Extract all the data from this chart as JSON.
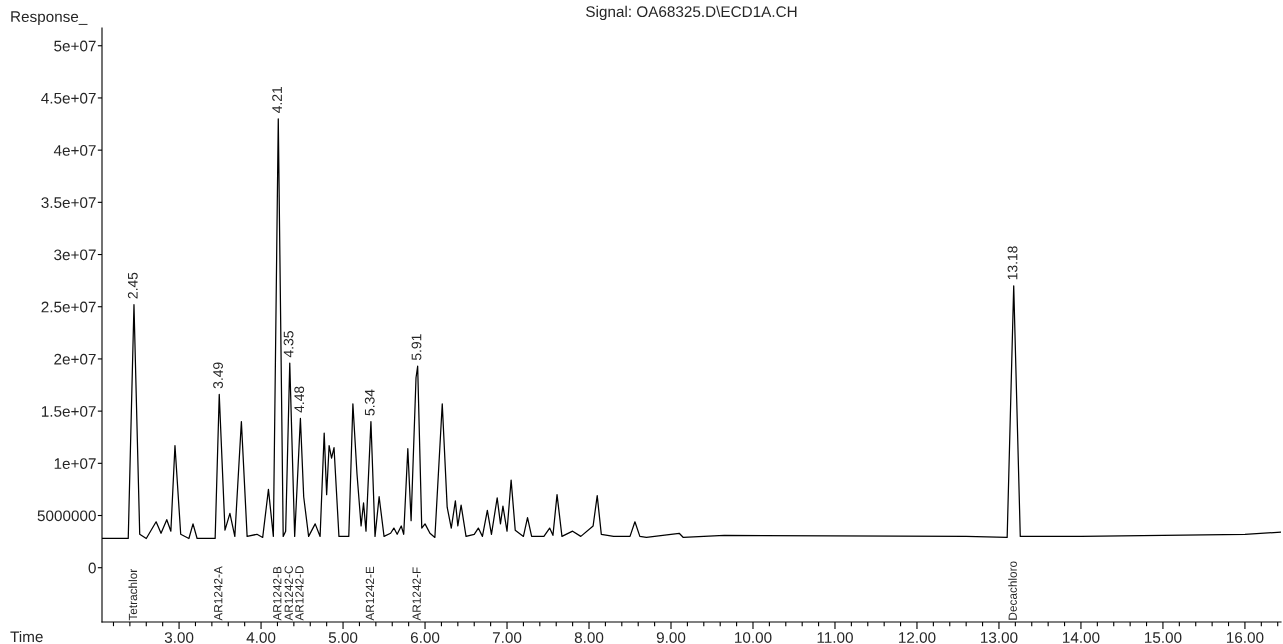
{
  "chart_data": {
    "type": "line",
    "title": "Signal: OA68325.D\\ECD1A.CH",
    "xlabel": "Time",
    "ylabel": "Response_",
    "series": [
      {
        "color": "#000000",
        "x": [
          2.06,
          2.38,
          2.45,
          2.52,
          2.6,
          2.72,
          2.78,
          2.85,
          2.9,
          2.95,
          3.02,
          3.12,
          3.17,
          3.22,
          3.44,
          3.49,
          3.56,
          3.62,
          3.68,
          3.76,
          3.83,
          3.95,
          4.02,
          4.09,
          4.15,
          4.21,
          4.27,
          4.3,
          4.35,
          4.41,
          4.48,
          4.52,
          4.58,
          4.66,
          4.72,
          4.77,
          4.8,
          4.83,
          4.86,
          4.89,
          4.95,
          5.07,
          5.12,
          5.17,
          5.22,
          5.25,
          5.28,
          5.34,
          5.39,
          5.44,
          5.5,
          5.58,
          5.62,
          5.66,
          5.71,
          5.74,
          5.79,
          5.83,
          5.89,
          5.91,
          5.96,
          6.0,
          6.06,
          6.12,
          6.21,
          6.27,
          6.32,
          6.37,
          6.4,
          6.44,
          6.5,
          6.6,
          6.65,
          6.7,
          6.76,
          6.81,
          6.88,
          6.92,
          6.95,
          7.0,
          7.05,
          7.1,
          7.2,
          7.25,
          7.3,
          7.45,
          7.52,
          7.56,
          7.61,
          7.67,
          7.8,
          7.9,
          8.05,
          8.1,
          8.15,
          8.3,
          8.5,
          8.56,
          8.62,
          8.7,
          9.1,
          9.15,
          9.65,
          12.6,
          13.1,
          13.18,
          13.26,
          14.0,
          15.0,
          16.0,
          16.44
        ],
        "values": [
          2800000,
          2800000,
          25200000,
          3200000,
          2800000,
          4400000,
          3300000,
          4600000,
          3500000,
          11700000,
          3200000,
          2800000,
          4200000,
          2800000,
          2800000,
          16600000,
          3600000,
          5200000,
          3000000,
          14000000,
          3000000,
          3200000,
          2900000,
          7500000,
          3000000,
          43000000,
          3000000,
          3500000,
          19600000,
          3000000,
          14300000,
          6800000,
          3000000,
          4200000,
          3000000,
          12900000,
          7000000,
          11700000,
          10500000,
          11500000,
          3000000,
          3000000,
          15700000,
          9000000,
          4000000,
          6200000,
          3500000,
          14000000,
          3000000,
          6800000,
          3000000,
          3300000,
          3800000,
          3200000,
          4000000,
          3200000,
          11400000,
          4500000,
          18200000,
          19300000,
          3800000,
          4200000,
          3300000,
          2900000,
          15700000,
          5800000,
          3800000,
          6400000,
          4000000,
          6000000,
          3000000,
          3200000,
          3800000,
          3000000,
          5500000,
          3200000,
          6700000,
          4200000,
          5900000,
          3500000,
          8400000,
          3600000,
          3000000,
          4800000,
          3000000,
          3000000,
          3800000,
          3100000,
          7000000,
          3000000,
          3500000,
          3000000,
          4000000,
          6900000,
          3200000,
          3000000,
          3000000,
          4400000,
          3000000,
          2900000,
          3300000,
          2900000,
          3100000,
          3000000,
          2900000,
          27000000,
          3000000,
          3000000,
          3100000,
          3200000,
          3400000
        ]
      }
    ],
    "xlim": [
      2.06,
      16.44
    ],
    "xticks": [
      {
        "value": 2.2,
        "label": null
      },
      {
        "value": 2.4,
        "label": null
      },
      {
        "value": 2.6,
        "label": null
      },
      {
        "value": 2.8,
        "label": null
      },
      {
        "value": 3,
        "label": "3.00"
      },
      {
        "value": 3.2,
        "label": null
      },
      {
        "value": 3.4,
        "label": null
      },
      {
        "value": 3.6,
        "label": null
      },
      {
        "value": 3.8,
        "label": null
      },
      {
        "value": 4,
        "label": "4.00"
      },
      {
        "value": 4.2,
        "label": null
      },
      {
        "value": 4.4,
        "label": null
      },
      {
        "value": 4.6,
        "label": null
      },
      {
        "value": 4.8,
        "label": null
      },
      {
        "value": 5,
        "label": "5.00"
      },
      {
        "value": 5.2,
        "label": null
      },
      {
        "value": 5.4,
        "label": null
      },
      {
        "value": 5.6,
        "label": null
      },
      {
        "value": 5.8,
        "label": null
      },
      {
        "value": 6,
        "label": "6.00"
      },
      {
        "value": 6.2,
        "label": null
      },
      {
        "value": 6.4,
        "label": null
      },
      {
        "value": 6.6,
        "label": null
      },
      {
        "value": 6.8,
        "label": null
      },
      {
        "value": 7,
        "label": "7.00"
      },
      {
        "value": 7.2,
        "label": null
      },
      {
        "value": 7.4,
        "label": null
      },
      {
        "value": 7.6,
        "label": null
      },
      {
        "value": 7.8,
        "label": null
      },
      {
        "value": 8,
        "label": "8.00"
      },
      {
        "value": 8.2,
        "label": null
      },
      {
        "value": 8.4,
        "label": null
      },
      {
        "value": 8.6,
        "label": null
      },
      {
        "value": 8.8,
        "label": null
      },
      {
        "value": 9,
        "label": "9.00"
      },
      {
        "value": 9.2,
        "label": null
      },
      {
        "value": 9.4,
        "label": null
      },
      {
        "value": 9.6,
        "label": null
      },
      {
        "value": 9.8,
        "label": null
      },
      {
        "value": 10,
        "label": "10.00"
      },
      {
        "value": 10.2,
        "label": null
      },
      {
        "value": 10.4,
        "label": null
      },
      {
        "value": 10.6,
        "label": null
      },
      {
        "value": 10.8,
        "label": null
      },
      {
        "value": 11,
        "label": "11.00"
      },
      {
        "value": 11.2,
        "label": null
      },
      {
        "value": 11.4,
        "label": null
      },
      {
        "value": 11.6,
        "label": null
      },
      {
        "value": 11.8,
        "label": null
      },
      {
        "value": 12,
        "label": "12.00"
      },
      {
        "value": 12.2,
        "label": null
      },
      {
        "value": 12.4,
        "label": null
      },
      {
        "value": 12.6,
        "label": null
      },
      {
        "value": 12.8,
        "label": null
      },
      {
        "value": 13,
        "label": "13.00"
      },
      {
        "value": 13.2,
        "label": null
      },
      {
        "value": 13.4,
        "label": null
      },
      {
        "value": 13.6,
        "label": null
      },
      {
        "value": 13.8,
        "label": null
      },
      {
        "value": 14,
        "label": "14.00"
      },
      {
        "value": 14.2,
        "label": null
      },
      {
        "value": 14.4,
        "label": null
      },
      {
        "value": 14.6,
        "label": null
      },
      {
        "value": 14.8,
        "label": null
      },
      {
        "value": 15,
        "label": "15.00"
      },
      {
        "value": 15.2,
        "label": null
      },
      {
        "value": 15.4,
        "label": null
      },
      {
        "value": 15.6,
        "label": null
      },
      {
        "value": 15.8,
        "label": null
      },
      {
        "value": 16,
        "label": "16.00"
      },
      {
        "value": 16.2,
        "label": null
      },
      {
        "value": 16.4,
        "label": null
      }
    ],
    "ylim": [
      -5200000,
      51700000
    ],
    "yticks": [
      0,
      5000000,
      {
        "value": 10000000,
        "label": "1e+07"
      },
      {
        "value": 15000000,
        "label": "1.5e+07"
      },
      {
        "value": 20000000,
        "label": "2e+07"
      },
      {
        "value": 25000000,
        "label": "2.5e+07"
      },
      {
        "value": 30000000,
        "label": "3e+07"
      },
      {
        "value": 35000000,
        "label": "3.5e+07"
      },
      {
        "value": 40000000,
        "label": "4e+07"
      },
      {
        "value": 45000000,
        "label": "4.5e+07"
      },
      {
        "value": 50000000,
        "label": "5e+07"
      }
    ],
    "grid": false,
    "legend": false,
    "annotations": [
      {
        "text": "2.45",
        "x": 2.45,
        "y": 25200000
      },
      {
        "text": "3.49",
        "x": 3.49,
        "y": 16600000
      },
      {
        "text": "4.21",
        "x": 4.21,
        "y": 43000000
      },
      {
        "text": "4.35",
        "x": 4.35,
        "y": 19600000
      },
      {
        "text": "4.48",
        "x": 4.48,
        "y": 14300000
      },
      {
        "text": "5.34",
        "x": 5.34,
        "y": 14000000
      },
      {
        "text": "5.91",
        "x": 5.91,
        "y": 19300000
      },
      {
        "text": "13.18",
        "x": 13.18,
        "y": 27000000
      },
      "Tetrachlor",
      "AR1242-A",
      "AR1242-B",
      "AR1242-C",
      "AR1242-D",
      "AR1242-E",
      "AR1242-F",
      "Decachloro"
    ]
  }
}
